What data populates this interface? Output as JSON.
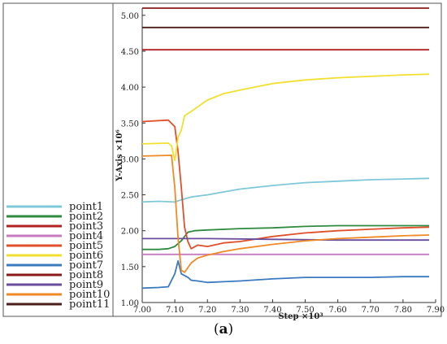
{
  "caption": {
    "open": "(",
    "letter": "a",
    "close": ")"
  },
  "chart_data": {
    "type": "line",
    "title": "",
    "xlabel": "Step ×10³",
    "ylabel": "Y-Axis ×10⁶",
    "xlim": [
      7.0,
      7.9
    ],
    "ylim": [
      1.0,
      5.1
    ],
    "xticks": [
      7.0,
      7.1,
      7.2,
      7.3,
      7.4,
      7.5,
      7.6,
      7.7,
      7.8,
      7.9
    ],
    "xtick_labels": [
      "7.00",
      "7.10",
      "7.20",
      "7.30",
      "7.40",
      "7.50",
      "7.60",
      "7.70",
      "7.80",
      "7.90"
    ],
    "yticks": [
      1.0,
      1.5,
      2.0,
      2.5,
      3.0,
      3.5,
      4.0,
      4.5,
      5.0
    ],
    "ytick_labels": [
      "1.00",
      "1.50",
      "2.00",
      "2.50",
      "3.00",
      "3.50",
      "4.00",
      "4.50",
      "5.00"
    ],
    "grid": false,
    "legend_position": "left",
    "series": [
      {
        "name": "point1",
        "color": "#7ec8d8",
        "x": [
          7.0,
          7.05,
          7.1,
          7.12,
          7.15,
          7.2,
          7.25,
          7.3,
          7.4,
          7.5,
          7.6,
          7.7,
          7.8,
          7.88
        ],
        "y": [
          2.4,
          2.41,
          2.4,
          2.43,
          2.47,
          2.5,
          2.54,
          2.58,
          2.63,
          2.67,
          2.69,
          2.71,
          2.72,
          2.73
        ]
      },
      {
        "name": "point2",
        "color": "#2e8b40",
        "x": [
          7.0,
          7.05,
          7.08,
          7.1,
          7.12,
          7.14,
          7.16,
          7.2,
          7.3,
          7.4,
          7.5,
          7.6,
          7.7,
          7.8,
          7.88
        ],
        "y": [
          1.74,
          1.74,
          1.75,
          1.78,
          1.86,
          1.98,
          2.0,
          2.01,
          2.03,
          2.04,
          2.06,
          2.07,
          2.07,
          2.07,
          2.07
        ]
      },
      {
        "name": "point3",
        "color": "#b22222",
        "x": [
          7.0,
          7.88
        ],
        "y": [
          4.52,
          4.52
        ]
      },
      {
        "name": "point4",
        "color": "#c87cc0",
        "x": [
          7.0,
          7.88
        ],
        "y": [
          1.67,
          1.67
        ]
      },
      {
        "name": "point5",
        "color": "#e0502a",
        "x": [
          7.0,
          7.08,
          7.1,
          7.11,
          7.12,
          7.13,
          7.14,
          7.15,
          7.17,
          7.2,
          7.25,
          7.3,
          7.4,
          7.5,
          7.6,
          7.7,
          7.8,
          7.88
        ],
        "y": [
          3.52,
          3.54,
          3.45,
          3.1,
          2.6,
          2.05,
          1.85,
          1.75,
          1.8,
          1.78,
          1.83,
          1.85,
          1.92,
          1.97,
          2.0,
          2.02,
          2.04,
          2.05
        ]
      },
      {
        "name": "point6",
        "color": "#f2e030",
        "x": [
          7.0,
          7.08,
          7.09,
          7.1,
          7.11,
          7.12,
          7.13,
          7.15,
          7.2,
          7.25,
          7.3,
          7.4,
          7.5,
          7.6,
          7.7,
          7.8,
          7.88
        ],
        "y": [
          3.21,
          3.22,
          3.18,
          2.98,
          3.3,
          3.4,
          3.6,
          3.66,
          3.82,
          3.91,
          3.96,
          4.05,
          4.1,
          4.13,
          4.15,
          4.17,
          4.18
        ]
      },
      {
        "name": "point7",
        "color": "#3a7abf",
        "x": [
          7.0,
          7.05,
          7.08,
          7.1,
          7.11,
          7.12,
          7.14,
          7.15,
          7.17,
          7.2,
          7.25,
          7.3,
          7.4,
          7.5,
          7.6,
          7.7,
          7.8,
          7.88
        ],
        "y": [
          1.2,
          1.21,
          1.22,
          1.4,
          1.58,
          1.4,
          1.35,
          1.31,
          1.3,
          1.28,
          1.29,
          1.3,
          1.33,
          1.35,
          1.35,
          1.35,
          1.36,
          1.36
        ]
      },
      {
        "name": "point8",
        "color": "#8b1a1a",
        "x": [
          7.0,
          7.88
        ],
        "y": [
          5.1,
          5.1
        ]
      },
      {
        "name": "point9",
        "color": "#6a4c9c",
        "x": [
          7.0,
          7.2,
          7.4,
          7.6,
          7.8,
          7.88
        ],
        "y": [
          1.89,
          1.89,
          1.88,
          1.87,
          1.87,
          1.87
        ]
      },
      {
        "name": "point10",
        "color": "#f08a24",
        "x": [
          7.0,
          7.09,
          7.1,
          7.11,
          7.12,
          7.13,
          7.15,
          7.17,
          7.2,
          7.25,
          7.3,
          7.4,
          7.5,
          7.6,
          7.7,
          7.8,
          7.88
        ],
        "y": [
          3.04,
          3.05,
          2.6,
          1.9,
          1.45,
          1.42,
          1.55,
          1.62,
          1.66,
          1.71,
          1.75,
          1.81,
          1.86,
          1.89,
          1.91,
          1.93,
          1.94
        ]
      },
      {
        "name": "point11",
        "color": "#4a1e1a",
        "x": [
          7.0,
          7.88
        ],
        "y": [
          4.83,
          4.83
        ]
      }
    ]
  }
}
